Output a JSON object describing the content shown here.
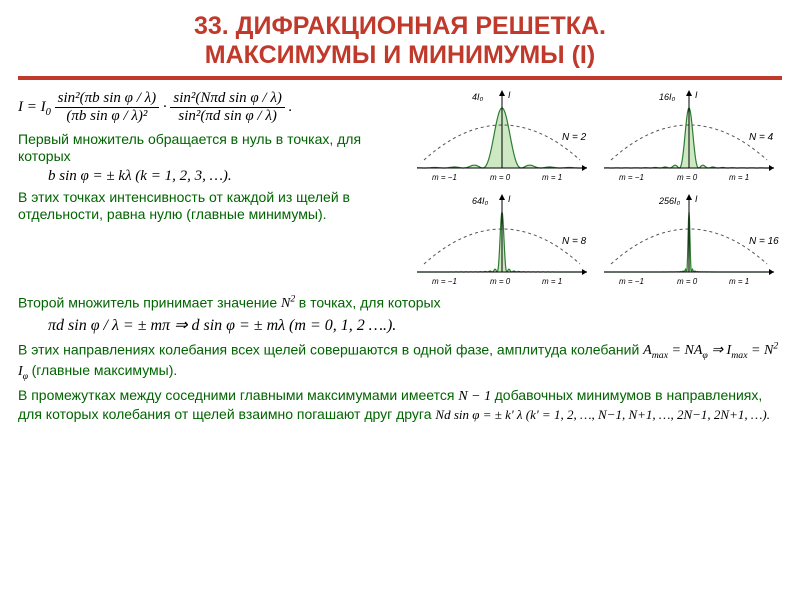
{
  "title_line1": "33. ДИФРАКЦИОННАЯ РЕШЕТКА.",
  "title_line2": "МАКСИМУМЫ И МИНИМУМЫ (I)",
  "colors": {
    "title": "#c0392b",
    "rule": "#c0392b",
    "green_text": "#006400",
    "chart_fill": "#cde8c3",
    "chart_stroke": "#2e7d32",
    "chart_dash": "#555555",
    "chart_axis": "#000000"
  },
  "intensity_formula": "I = I₀ · \\frac{sin²(πb sin φ / λ)}{(πb sin φ / λ)²} · \\frac{sin²(Nπd sin φ / λ)}{sin²(πd sin φ / λ)} .",
  "p1": "Первый множитель обращается в нуль в точках, для которых",
  "eq1": "b sin φ = ± kλ      (k = 1, 2, 3, …).",
  "p2": "В этих точках интенсивность от каждой из щелей в отдельности, равна нулю (главные минимумы).",
  "p3a": "Второй множитель принимает значение",
  "p3sup": "N²",
  "p3b": "в точках, для которых",
  "eq2": "πd sin φ / λ = ± mπ  ⇒    d sin φ = ± mλ      (m = 0, 1, 2 ….).",
  "p4a": "В этих направлениях  колебания  всех щелей совершаются в одной фазе, амплитуда колебаний",
  "eq3": "A_max = NA_φ  ⇒   I_max = N² I_φ",
  "p4b": "(главные максимумы).",
  "p5a": "В промежутках между соседними главными максимумами имеется",
  "p5m": "N − 1",
  "p5b": "добавочных минимумов в направлениях, для которых колебания от щелей взаимно погашают друг друга",
  "eq4": "Nd sin φ = ± k' λ   (k' = 1, 2, …, N−1, N+1, …, 2N−1, 2N+1, …).",
  "charts": [
    {
      "N": 2,
      "peak_label": "4I₀",
      "axis_lbl": [
        "m = −1",
        "m = 0",
        "m = 1"
      ]
    },
    {
      "N": 4,
      "peak_label": "16I₀",
      "axis_lbl": [
        "m = −1",
        "m = 0",
        "m = 1"
      ]
    },
    {
      "N": 8,
      "peak_label": "64I₀",
      "axis_lbl": [
        "m = −1",
        "m = 0",
        "m = 1"
      ]
    },
    {
      "N": 16,
      "peak_label": "256I₀",
      "axis_lbl": [
        "m = −1",
        "m = 0",
        "m = 1"
      ]
    }
  ]
}
